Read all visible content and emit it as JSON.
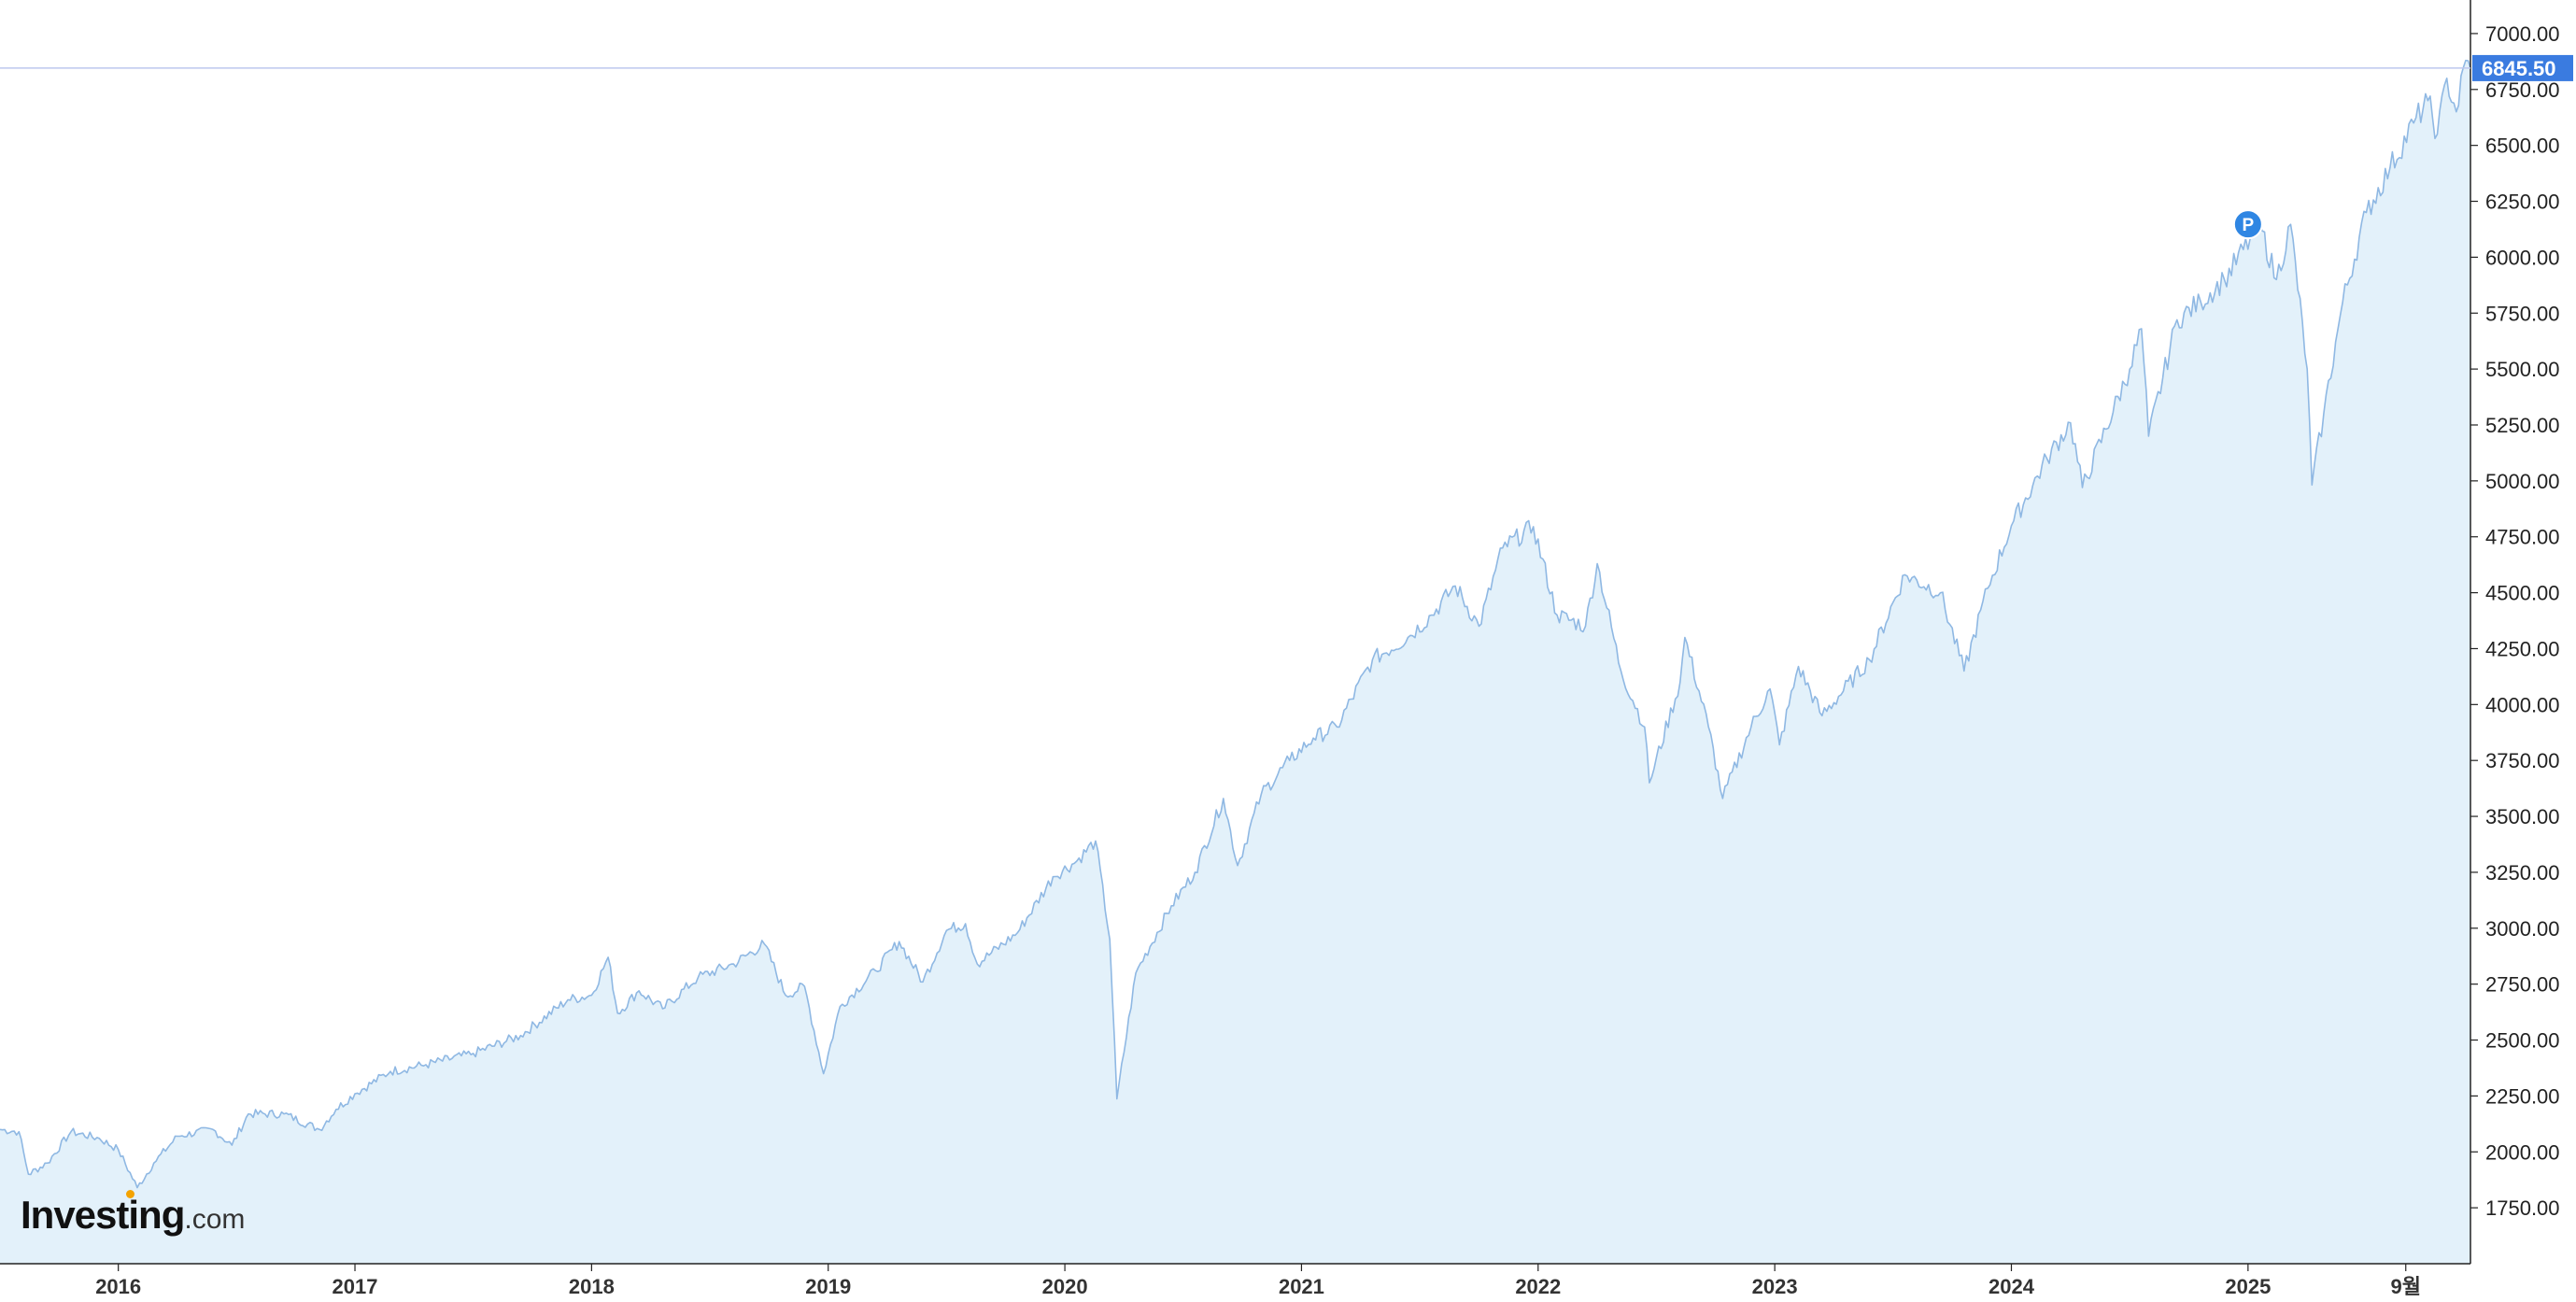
{
  "chart_data": {
    "type": "area",
    "title": "",
    "xlabel": "",
    "ylabel": "",
    "x_tick_labels": [
      "2016",
      "2017",
      "2018",
      "2019",
      "2020",
      "2021",
      "2022",
      "2023",
      "2024",
      "2025",
      "9월"
    ],
    "y_tick_labels": [
      "1750.00",
      "2000.00",
      "2250.00",
      "2500.00",
      "2750.00",
      "3000.00",
      "3250.00",
      "3500.00",
      "3750.00",
      "4000.00",
      "4250.00",
      "4500.00",
      "4750.00",
      "5000.00",
      "5250.00",
      "5500.00",
      "5750.00",
      "6000.00",
      "6250.00",
      "6500.00",
      "6750.00",
      "7000.00"
    ],
    "ylim": [
      1500,
      7150
    ],
    "xlim": [
      2015.5,
      2025.94
    ],
    "grid": false,
    "legend": "none",
    "series": [
      {
        "values": [
          [
            2015.5,
            2100
          ],
          [
            2015.58,
            2090
          ],
          [
            2015.62,
            1900
          ],
          [
            2015.7,
            1950
          ],
          [
            2015.8,
            2090
          ],
          [
            2015.92,
            2060
          ],
          [
            2016.0,
            2010
          ],
          [
            2016.08,
            1840
          ],
          [
            2016.15,
            1950
          ],
          [
            2016.25,
            2070
          ],
          [
            2016.4,
            2100
          ],
          [
            2016.48,
            2030
          ],
          [
            2016.55,
            2170
          ],
          [
            2016.7,
            2170
          ],
          [
            2016.85,
            2100
          ],
          [
            2016.92,
            2190
          ],
          [
            2017.0,
            2260
          ],
          [
            2017.15,
            2360
          ],
          [
            2017.3,
            2390
          ],
          [
            2017.5,
            2440
          ],
          [
            2017.7,
            2520
          ],
          [
            2017.9,
            2680
          ],
          [
            2018.0,
            2700
          ],
          [
            2018.07,
            2870
          ],
          [
            2018.11,
            2620
          ],
          [
            2018.2,
            2720
          ],
          [
            2018.3,
            2640
          ],
          [
            2018.45,
            2780
          ],
          [
            2018.6,
            2840
          ],
          [
            2018.73,
            2930
          ],
          [
            2018.82,
            2700
          ],
          [
            2018.9,
            2740
          ],
          [
            2018.98,
            2350
          ],
          [
            2019.05,
            2650
          ],
          [
            2019.2,
            2810
          ],
          [
            2019.3,
            2940
          ],
          [
            2019.4,
            2760
          ],
          [
            2019.5,
            2990
          ],
          [
            2019.58,
            3020
          ],
          [
            2019.63,
            2840
          ],
          [
            2019.8,
            2980
          ],
          [
            2019.95,
            3230
          ],
          [
            2020.05,
            3300
          ],
          [
            2020.13,
            3390
          ],
          [
            2020.19,
            2950
          ],
          [
            2020.22,
            2237
          ],
          [
            2020.3,
            2800
          ],
          [
            2020.45,
            3100
          ],
          [
            2020.55,
            3250
          ],
          [
            2020.67,
            3580
          ],
          [
            2020.73,
            3280
          ],
          [
            2020.83,
            3600
          ],
          [
            2020.95,
            3750
          ],
          [
            2021.05,
            3850
          ],
          [
            2021.15,
            3900
          ],
          [
            2021.3,
            4200
          ],
          [
            2021.45,
            4300
          ],
          [
            2021.55,
            4400
          ],
          [
            2021.65,
            4530
          ],
          [
            2021.75,
            4350
          ],
          [
            2021.85,
            4700
          ],
          [
            2021.98,
            4795
          ],
          [
            2022.08,
            4400
          ],
          [
            2022.2,
            4350
          ],
          [
            2022.25,
            4630
          ],
          [
            2022.35,
            4150
          ],
          [
            2022.45,
            3900
          ],
          [
            2022.47,
            3650
          ],
          [
            2022.6,
            4100
          ],
          [
            2022.62,
            4300
          ],
          [
            2022.72,
            3900
          ],
          [
            2022.78,
            3580
          ],
          [
            2022.9,
            3900
          ],
          [
            2022.98,
            4070
          ],
          [
            2023.02,
            3820
          ],
          [
            2023.1,
            4170
          ],
          [
            2023.2,
            3950
          ],
          [
            2023.4,
            4200
          ],
          [
            2023.55,
            4580
          ],
          [
            2023.7,
            4500
          ],
          [
            2023.8,
            4150
          ],
          [
            2023.9,
            4520
          ],
          [
            2024.0,
            4800
          ],
          [
            2024.15,
            5100
          ],
          [
            2024.25,
            5260
          ],
          [
            2024.3,
            4970
          ],
          [
            2024.5,
            5500
          ],
          [
            2024.55,
            5680
          ],
          [
            2024.58,
            5200
          ],
          [
            2024.7,
            5720
          ],
          [
            2024.8,
            5800
          ],
          [
            2024.9,
            5900
          ],
          [
            2025.05,
            6144
          ],
          [
            2025.12,
            5900
          ],
          [
            2025.18,
            6147
          ],
          [
            2025.25,
            5500
          ],
          [
            2025.27,
            4982
          ],
          [
            2025.32,
            5300
          ],
          [
            2025.4,
            5800
          ],
          [
            2025.5,
            6200
          ],
          [
            2025.6,
            6400
          ],
          [
            2025.7,
            6600
          ],
          [
            2025.76,
            6700
          ],
          [
            2025.8,
            6550
          ],
          [
            2025.84,
            6800
          ],
          [
            2025.88,
            6650
          ],
          [
            2025.92,
            6880
          ],
          [
            2025.94,
            6845.5
          ]
        ]
      }
    ],
    "current_value": "6845.50",
    "annotations": [
      {
        "label": "P",
        "x": 2025.0,
        "y": 6147
      }
    ],
    "colors": {
      "line": "#8fb8e3",
      "fill": "#e3f1fa",
      "price_label_bg": "#3a7be0",
      "price_line": "#bdc7ee",
      "marker": "#2f86e3",
      "axis": "#222222"
    }
  },
  "logo": {
    "main": "Investing",
    "suffix": ".com",
    "dot_color": "#f4a300"
  }
}
